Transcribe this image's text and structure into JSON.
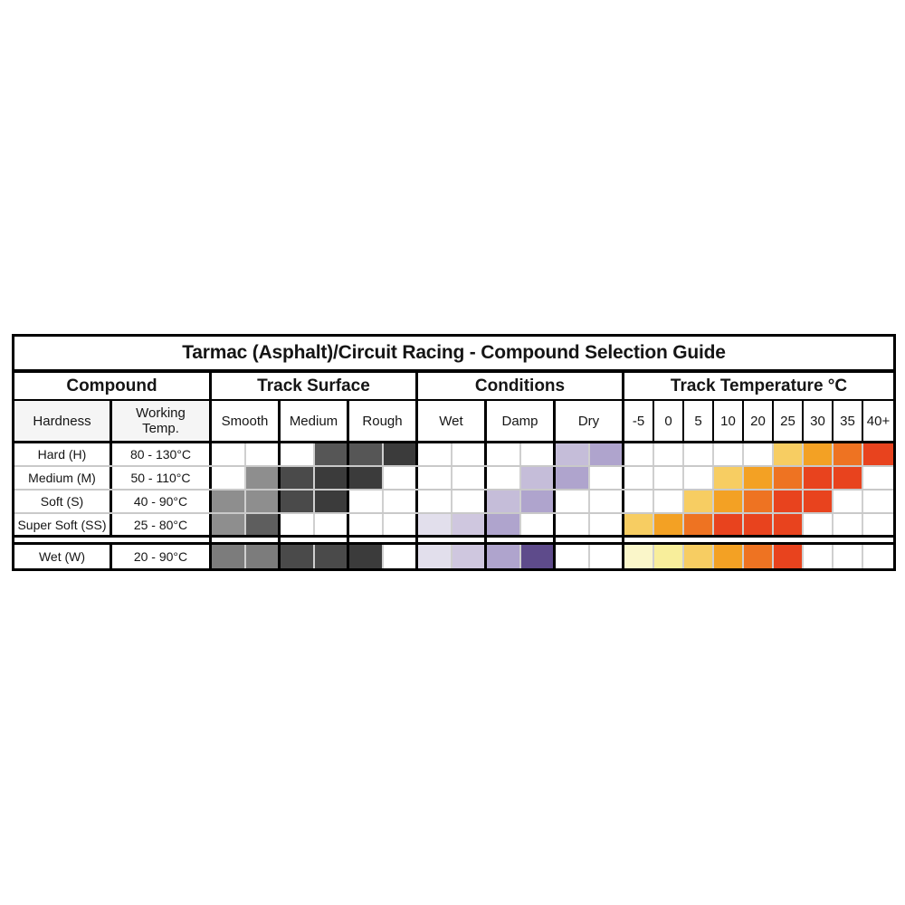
{
  "title": "Tarmac (Asphalt)/Circuit Racing - Compound Selection Guide",
  "group_headers": {
    "compound": "Compound",
    "track_surface": "Track Surface",
    "conditions": "Conditions",
    "track_temperature": "Track Temperature °C"
  },
  "compound_subheaders": {
    "hardness": "Hardness",
    "working_temp": "Working Temp."
  },
  "chart_data": {
    "type": "heatmap",
    "title": "Tarmac (Asphalt)/Circuit Racing - Compound Selection Guide",
    "columns": {
      "track_surface": [
        "Smooth",
        "Medium",
        "Rough"
      ],
      "conditions": [
        "Wet",
        "Damp",
        "Dry"
      ],
      "track_temperature_c": [
        "-5",
        "0",
        "5",
        "10",
        "20",
        "25",
        "30",
        "35",
        "40+"
      ]
    },
    "subcells_per_surface_condition_column": 2,
    "palette": {
      "g90": "#8E8E8E",
      "g7C": "#7C7C7C",
      "g5E": "#5E5E5E",
      "g56": "#565656",
      "g4A": "#4A4A4A",
      "g3B": "#3B3B3B",
      "v1": "#E2DFEC",
      "v2": "#CFC7DF",
      "v3": "#C5BDD9",
      "v4": "#AFA4CD",
      "v5": "#5E4B8B",
      "t1": "#FAF6C9",
      "t2": "#F8EE9B",
      "t3": "#F7CD62",
      "t4": "#F3A124",
      "t5": "#EE7322",
      "t6": "#E8431E"
    },
    "rows": [
      {
        "compound": "Hard (H)",
        "working_temp": "80 - 130°C",
        "surface": [
          "",
          "",
          "",
          "g56",
          "g56",
          "g3B"
        ],
        "conditions": [
          "",
          "",
          "",
          "",
          "v3",
          "v4"
        ],
        "temperature": [
          "",
          "",
          "",
          "",
          "",
          "t3",
          "t4",
          "t5",
          "t6"
        ]
      },
      {
        "compound": "Medium (M)",
        "working_temp": "50 - 110°C",
        "surface": [
          "",
          "g90",
          "g4A",
          "g3B",
          "g3B",
          ""
        ],
        "conditions": [
          "",
          "",
          "",
          "v3",
          "v4",
          ""
        ],
        "temperature": [
          "",
          "",
          "",
          "t3",
          "t4",
          "t5",
          "t6",
          "t6",
          ""
        ]
      },
      {
        "compound": "Soft (S)",
        "working_temp": "40 - 90°C",
        "surface": [
          "g90",
          "g90",
          "g4A",
          "g3B",
          "",
          ""
        ],
        "conditions": [
          "",
          "",
          "v3",
          "v4",
          "",
          ""
        ],
        "temperature": [
          "",
          "",
          "t3",
          "t4",
          "t5",
          "t6",
          "t6",
          "",
          ""
        ]
      },
      {
        "compound": "Super Soft (SS)",
        "working_temp": "25 - 80°C",
        "surface": [
          "g90",
          "g5E",
          "",
          "",
          "",
          ""
        ],
        "conditions": [
          "v1",
          "v2",
          "v4",
          "",
          "",
          ""
        ],
        "temperature": [
          "t3",
          "t4",
          "t5",
          "t6",
          "t6",
          "t6",
          "",
          "",
          ""
        ]
      },
      {
        "compound": "Wet (W)",
        "working_temp": "20 - 90°C",
        "surface": [
          "g7C",
          "g7C",
          "g4A",
          "g4A",
          "g3B",
          ""
        ],
        "conditions": [
          "v1",
          "v2",
          "v4",
          "v5",
          "",
          ""
        ],
        "temperature": [
          "t1",
          "t2",
          "t3",
          "t4",
          "t5",
          "t6",
          "",
          "",
          ""
        ]
      }
    ]
  }
}
